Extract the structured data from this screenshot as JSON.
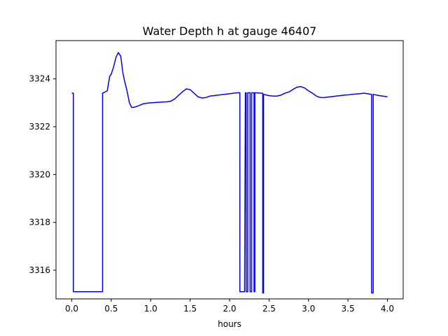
{
  "chart_data": {
    "type": "line",
    "title": "Water Depth h at gauge 46407",
    "xlabel": "hours",
    "ylabel": "",
    "xlim": [
      -0.2,
      4.2
    ],
    "ylim": [
      3314.8,
      3325.6
    ],
    "xticks": [
      0.0,
      0.5,
      1.0,
      1.5,
      2.0,
      2.5,
      3.0,
      3.5,
      4.0
    ],
    "xtick_labels": [
      "0.0",
      "0.5",
      "1.0",
      "1.5",
      "2.0",
      "2.5",
      "3.0",
      "3.5",
      "4.0"
    ],
    "yticks": [
      3316,
      3318,
      3320,
      3322,
      3324
    ],
    "ytick_labels": [
      "3316",
      "3318",
      "3320",
      "3322",
      "3324"
    ],
    "grid": false,
    "legend": "none",
    "series": [
      {
        "color": "#0000ff",
        "x": [
          0.0,
          0.02,
          0.02,
          0.1,
          0.2,
          0.3,
          0.39,
          0.39,
          0.45,
          0.48,
          0.5,
          0.53,
          0.56,
          0.59,
          0.62,
          0.65,
          0.67,
          0.7,
          0.73,
          0.76,
          0.8,
          0.85,
          0.9,
          0.95,
          1.0,
          1.05,
          1.1,
          1.15,
          1.2,
          1.25,
          1.3,
          1.35,
          1.4,
          1.45,
          1.5,
          1.55,
          1.6,
          1.65,
          1.7,
          1.75,
          1.8,
          1.85,
          1.9,
          1.95,
          2.0,
          2.05,
          2.1,
          2.13,
          2.13,
          2.19,
          2.2,
          2.21,
          2.21,
          2.23,
          2.23,
          2.26,
          2.26,
          2.28,
          2.28,
          2.31,
          2.31,
          2.32,
          2.32,
          2.4,
          2.42,
          2.42,
          2.43,
          2.43,
          2.5,
          2.55,
          2.6,
          2.65,
          2.7,
          2.75,
          2.8,
          2.85,
          2.9,
          2.95,
          3.0,
          3.05,
          3.1,
          3.15,
          3.2,
          3.25,
          3.3,
          3.35,
          3.4,
          3.45,
          3.5,
          3.55,
          3.6,
          3.65,
          3.7,
          3.75,
          3.8,
          3.8,
          3.81,
          3.82,
          3.82,
          3.9,
          4.0
        ],
        "y": [
          3323.4,
          3323.4,
          3315.1,
          3315.1,
          3315.1,
          3315.1,
          3315.1,
          3323.4,
          3323.5,
          3324.1,
          3324.2,
          3324.5,
          3324.9,
          3325.1,
          3324.95,
          3324.2,
          3323.9,
          3323.5,
          3323.0,
          3322.8,
          3322.82,
          3322.88,
          3322.95,
          3322.98,
          3323.0,
          3323.01,
          3323.02,
          3323.03,
          3323.04,
          3323.06,
          3323.15,
          3323.3,
          3323.45,
          3323.58,
          3323.55,
          3323.4,
          3323.25,
          3323.2,
          3323.22,
          3323.28,
          3323.3,
          3323.32,
          3323.34,
          3323.36,
          3323.38,
          3323.4,
          3323.42,
          3323.42,
          3315.1,
          3315.1,
          3323.42,
          3323.42,
          3315.1,
          3315.1,
          3323.42,
          3323.42,
          3315.1,
          3315.1,
          3323.42,
          3323.42,
          3315.1,
          3315.1,
          3323.42,
          3323.4,
          3323.4,
          3315.05,
          3315.05,
          3323.35,
          3323.3,
          3323.28,
          3323.28,
          3323.32,
          3323.4,
          3323.45,
          3323.55,
          3323.65,
          3323.68,
          3323.62,
          3323.5,
          3323.4,
          3323.28,
          3323.22,
          3323.22,
          3323.24,
          3323.26,
          3323.28,
          3323.3,
          3323.32,
          3323.33,
          3323.35,
          3323.37,
          3323.38,
          3323.4,
          3323.38,
          3323.35,
          3315.05,
          3315.05,
          3315.05,
          3323.35,
          3323.3,
          3323.25
        ]
      }
    ]
  }
}
